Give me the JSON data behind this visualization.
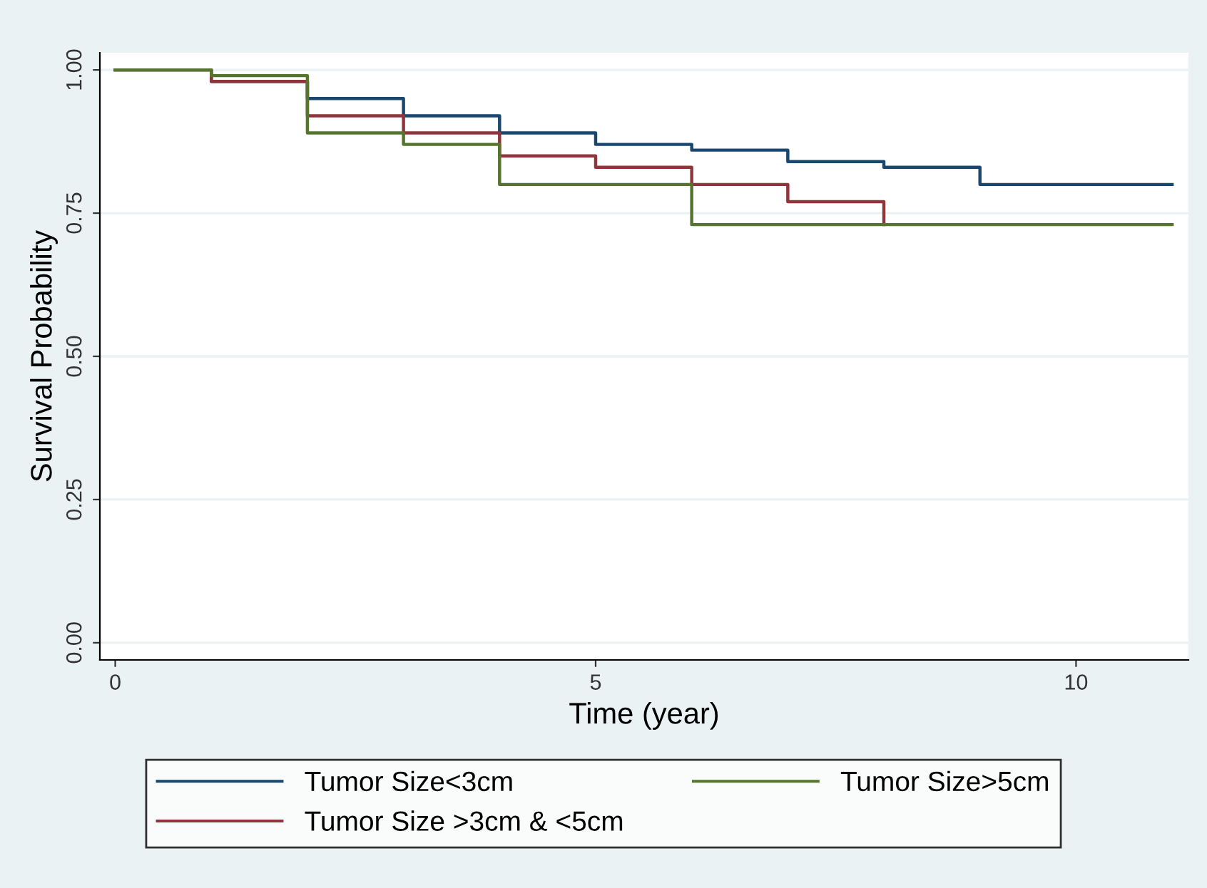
{
  "chart_data": {
    "type": "step",
    "xlabel": "Time (year)",
    "ylabel": "Survival Probability",
    "xlim": [
      -0.16,
      11.17
    ],
    "xticks": [
      0,
      5,
      10
    ],
    "ylim": [
      -0.03,
      1.03
    ],
    "yticks": [
      {
        "value": 0,
        "label": "0.00"
      },
      {
        "value": 0.25,
        "label": "0.25"
      },
      {
        "value": 0.5,
        "label": "0.50"
      },
      {
        "value": 0.75,
        "label": "0.75"
      },
      {
        "value": 1,
        "label": "1.00"
      }
    ],
    "grid": "y",
    "legend": "bottom",
    "series": [
      {
        "name": "Tumor Size<3cm",
        "color": "#1a476f",
        "x": [
          0,
          1,
          2,
          3,
          4,
          5,
          6,
          7,
          8,
          9,
          11
        ],
        "values": [
          1,
          0.98,
          0.95,
          0.92,
          0.89,
          0.87,
          0.86,
          0.84,
          0.83,
          0.8,
          0.8
        ]
      },
      {
        "name": "Tumor Size >3cm & <5cm",
        "color": "#90353b",
        "x": [
          0,
          1,
          2,
          3,
          4,
          5,
          6,
          7,
          8
        ],
        "values": [
          1,
          0.98,
          0.92,
          0.89,
          0.85,
          0.83,
          0.8,
          0.77,
          0.73
        ]
      },
      {
        "name": "Tumor Size>5cm",
        "color": "#55752f",
        "x": [
          0,
          1,
          2,
          3,
          4,
          6,
          11
        ],
        "values": [
          1,
          0.99,
          0.89,
          0.87,
          0.8,
          0.73,
          0.73
        ]
      }
    ]
  }
}
